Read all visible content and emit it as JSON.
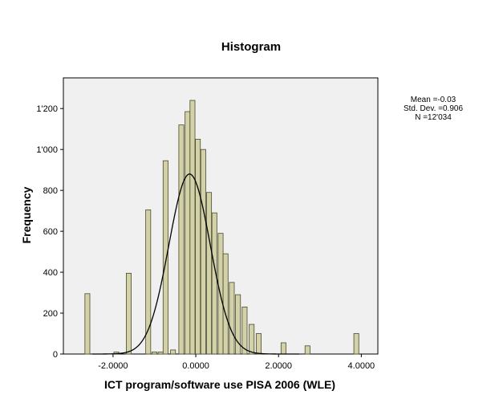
{
  "chart_data": {
    "type": "bar",
    "title": "Histogram",
    "xlabel": "ICT program/software use PISA 2006 (WLE)",
    "ylabel": "Frequency",
    "xlim": [
      -3.2,
      4.4
    ],
    "ylim": [
      0,
      1350
    ],
    "x_ticks": [
      {
        "value": -2.0,
        "label": "-2.0000"
      },
      {
        "value": 0.0,
        "label": "0.0000"
      },
      {
        "value": 2.0,
        "label": "2.0000"
      },
      {
        "value": 4.0,
        "label": "4.0000"
      }
    ],
    "y_ticks": [
      {
        "value": 0,
        "label": "0"
      },
      {
        "value": 200,
        "label": "200"
      },
      {
        "value": 400,
        "label": "400"
      },
      {
        "value": 600,
        "label": "600"
      },
      {
        "value": 800,
        "label": "800"
      },
      {
        "value": 1000,
        "label": "1'000"
      },
      {
        "value": 1200,
        "label": "1'200"
      }
    ],
    "bin_width": 0.12,
    "bins": [
      {
        "x": -2.62,
        "y": 295
      },
      {
        "x": -1.92,
        "y": 10
      },
      {
        "x": -1.62,
        "y": 395
      },
      {
        "x": -1.15,
        "y": 705
      },
      {
        "x": -1.0,
        "y": 10
      },
      {
        "x": -0.85,
        "y": 10
      },
      {
        "x": -0.73,
        "y": 945
      },
      {
        "x": -0.55,
        "y": 20
      },
      {
        "x": -0.35,
        "y": 1120
      },
      {
        "x": -0.2,
        "y": 1185
      },
      {
        "x": -0.08,
        "y": 1240
      },
      {
        "x": 0.05,
        "y": 1050
      },
      {
        "x": 0.18,
        "y": 1000
      },
      {
        "x": 0.32,
        "y": 790
      },
      {
        "x": 0.45,
        "y": 690
      },
      {
        "x": 0.6,
        "y": 590
      },
      {
        "x": 0.72,
        "y": 490
      },
      {
        "x": 0.87,
        "y": 350
      },
      {
        "x": 1.02,
        "y": 290
      },
      {
        "x": 1.18,
        "y": 230
      },
      {
        "x": 1.35,
        "y": 145
      },
      {
        "x": 1.52,
        "y": 100
      },
      {
        "x": 2.12,
        "y": 55
      },
      {
        "x": 2.7,
        "y": 40
      },
      {
        "x": 3.88,
        "y": 100
      }
    ],
    "normal_curve": {
      "mean": -0.03,
      "sd": 0.906,
      "n": 12034
    },
    "stats": {
      "mean": "Mean =-0.03",
      "std_dev": "Std. Dev. =0.906",
      "n": "N =12'034"
    },
    "colors": {
      "bar_fill": "#d2d1a8",
      "bar_stroke": "#4a4a2e",
      "plot_bg": "#f0f0f0",
      "curve": "#000000"
    },
    "grid": false,
    "legend": "none"
  }
}
